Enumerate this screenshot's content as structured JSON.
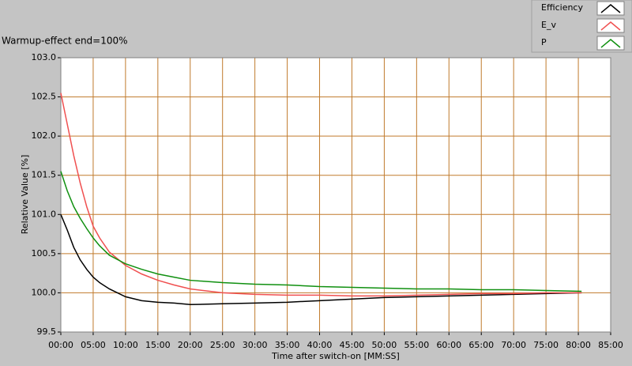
{
  "chart_data": {
    "type": "line",
    "title": "Warmup-effect end=100%",
    "x_label": "Time after switch-on [MM:SS]",
    "y_label": "Relative Value [%]",
    "x": [
      0,
      1,
      2,
      3,
      4,
      5,
      6,
      7.5,
      10,
      12.5,
      15,
      17.5,
      20,
      25,
      30,
      35,
      40,
      45,
      50,
      55,
      60,
      65,
      70,
      75,
      80.5
    ],
    "series": [
      {
        "name": "Efficiency",
        "color": "#000000",
        "values": [
          101.0,
          100.8,
          100.58,
          100.42,
          100.3,
          100.2,
          100.13,
          100.05,
          99.95,
          99.9,
          99.88,
          99.87,
          99.85,
          99.86,
          99.87,
          99.88,
          99.9,
          99.92,
          99.94,
          99.95,
          99.96,
          99.97,
          99.98,
          99.99,
          100.0
        ]
      },
      {
        "name": "E_v",
        "color": "#f05050",
        "values": [
          102.55,
          102.15,
          101.75,
          101.4,
          101.1,
          100.85,
          100.7,
          100.52,
          100.35,
          100.24,
          100.16,
          100.1,
          100.05,
          100.0,
          99.98,
          99.97,
          99.97,
          99.96,
          99.96,
          99.97,
          99.98,
          99.99,
          99.99,
          100.0,
          100.0
        ]
      },
      {
        "name": "P",
        "color": "#109010",
        "values": [
          101.55,
          101.3,
          101.1,
          100.95,
          100.82,
          100.7,
          100.6,
          100.48,
          100.37,
          100.3,
          100.24,
          100.2,
          100.16,
          100.13,
          100.11,
          100.1,
          100.08,
          100.07,
          100.06,
          100.05,
          100.05,
          100.04,
          100.04,
          100.03,
          100.02
        ]
      }
    ],
    "xlim": [
      0,
      85
    ],
    "xticks": [
      {
        "value": 0,
        "label": "00:00"
      },
      {
        "value": 5,
        "label": "05:00"
      },
      {
        "value": 10,
        "label": "10:00"
      },
      {
        "value": 15,
        "label": "15:00"
      },
      {
        "value": 20,
        "label": "20:00"
      },
      {
        "value": 25,
        "label": "25:00"
      },
      {
        "value": 30,
        "label": "30:00"
      },
      {
        "value": 35,
        "label": "35:00"
      },
      {
        "value": 40,
        "label": "40:00"
      },
      {
        "value": 45,
        "label": "45:00"
      },
      {
        "value": 50,
        "label": "50:00"
      },
      {
        "value": 55,
        "label": "55:00"
      },
      {
        "value": 60,
        "label": "60:00"
      },
      {
        "value": 65,
        "label": "65:00"
      },
      {
        "value": 70,
        "label": "70:00"
      },
      {
        "value": 75,
        "label": "75:00"
      },
      {
        "value": 80,
        "label": "80:00"
      },
      {
        "value": 85,
        "label": "85:00"
      }
    ],
    "ylim": [
      99.5,
      103
    ],
    "yticks": [
      99.5,
      {
        "value": 100,
        "label": "100.0"
      },
      100.5,
      {
        "value": 101,
        "label": "101.0"
      },
      101.5,
      {
        "value": 102,
        "label": "102.0"
      },
      102.5,
      {
        "value": 103,
        "label": "103.0"
      }
    ],
    "grid": true,
    "grid_color": "#c07a2c",
    "legend": "top-right"
  }
}
